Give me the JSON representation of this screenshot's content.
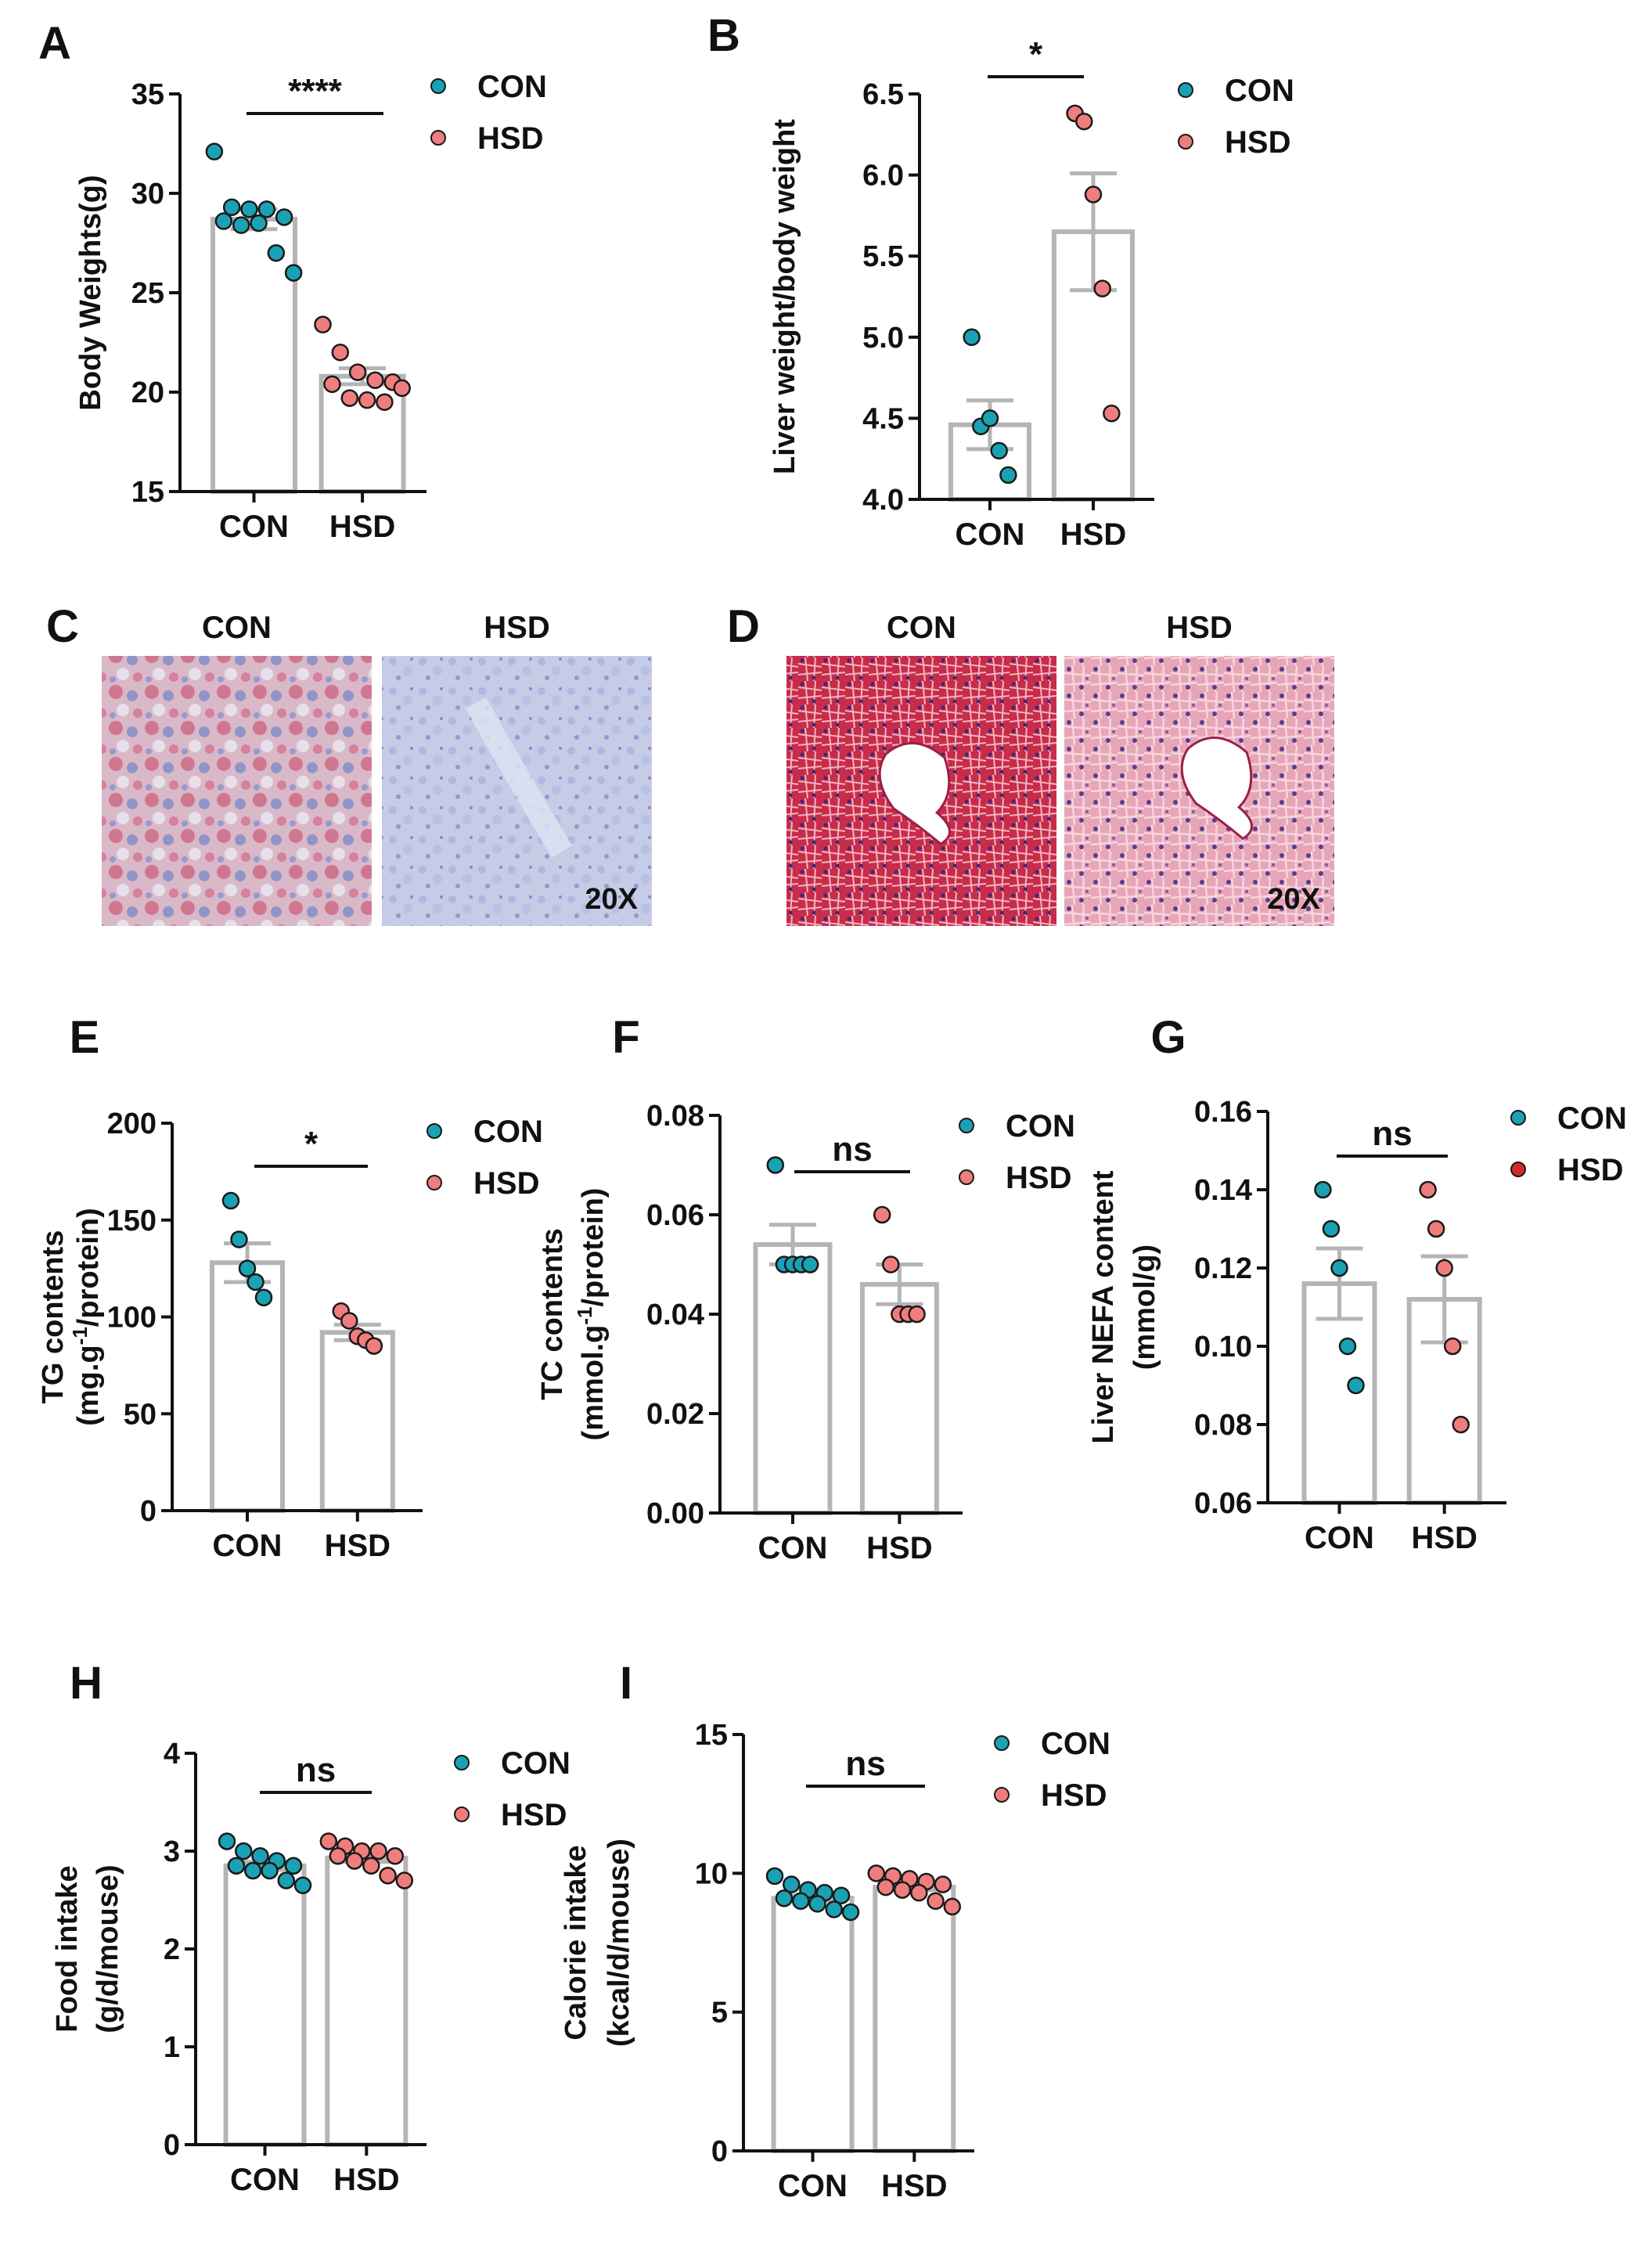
{
  "colors": {
    "con": "#1aa1b3",
    "hsd": "#f07d7d",
    "hsd_dark": "#d42a2a",
    "bar": "#b5b5b5",
    "axis": "#111111"
  },
  "charts": [
    {
      "letter": "A",
      "type": "bar-scatter",
      "ylabel": [
        "Body Weights(g)"
      ],
      "categories": [
        "CON",
        "HSD"
      ],
      "yticks": [
        "15",
        "20",
        "25",
        "30",
        "35"
      ],
      "ylim": [
        15,
        35
      ],
      "significance": "****",
      "legend": [
        "CON",
        "HSD"
      ]
    },
    {
      "letter": "B",
      "type": "bar-scatter",
      "ylabel": [
        "Liver weight/body weight"
      ],
      "categories": [
        "CON",
        "HSD"
      ],
      "yticks": [
        "4.0",
        "4.5",
        "5.0",
        "5.5",
        "6.0",
        "6.5"
      ],
      "ylim": [
        4.0,
        6.5
      ],
      "significance": "*",
      "legend": [
        "CON",
        "HSD"
      ]
    },
    {
      "letter": "E",
      "type": "bar-scatter",
      "ylabel": [
        "TG contents",
        "(mg.g-1/protein)"
      ],
      "categories": [
        "CON",
        "HSD"
      ],
      "yticks": [
        "0",
        "50",
        "100",
        "150",
        "200"
      ],
      "ylim": [
        0,
        200
      ],
      "significance": "*",
      "legend": [
        "CON",
        "HSD"
      ]
    },
    {
      "letter": "F",
      "type": "bar-scatter",
      "ylabel": [
        "TC contents",
        "(mmol.g-1/protein)"
      ],
      "categories": [
        "CON",
        "HSD"
      ],
      "yticks": [
        "0.00",
        "0.02",
        "0.04",
        "0.06",
        "0.08"
      ],
      "ylim": [
        0,
        0.08
      ],
      "significance": "ns",
      "legend": [
        "CON",
        "HSD"
      ]
    },
    {
      "letter": "G",
      "type": "bar-scatter",
      "ylabel": [
        "Liver NEFA content",
        "(mmol/g)"
      ],
      "categories": [
        "CON",
        "HSD"
      ],
      "yticks": [
        "0.06",
        "0.08",
        "0.10",
        "0.12",
        "0.14",
        "0.16"
      ],
      "ylim": [
        0.06,
        0.16
      ],
      "significance": "ns",
      "legend": [
        "CON",
        "HSD"
      ]
    },
    {
      "letter": "H",
      "type": "bar-scatter",
      "ylabel": [
        "Food intake",
        "(g/d/mouse)"
      ],
      "categories": [
        "CON",
        "HSD"
      ],
      "yticks": [
        "0",
        "1",
        "2",
        "3",
        "4"
      ],
      "ylim": [
        0,
        4
      ],
      "significance": "ns",
      "legend": [
        "CON",
        "HSD"
      ]
    },
    {
      "letter": "I",
      "type": "bar-scatter",
      "ylabel": [
        "Calorie intake",
        "(kcal/d/mouse)"
      ],
      "categories": [
        "CON",
        "HSD"
      ],
      "yticks": [
        "0",
        "5",
        "10",
        "15"
      ],
      "ylim": [
        0,
        15
      ],
      "significance": "ns",
      "legend": [
        "CON",
        "HSD"
      ]
    }
  ],
  "chart_data": [
    {
      "panel": "A",
      "type": "bar",
      "categories": [
        "CON",
        "HSD"
      ],
      "ylabel": "Body Weights(g)",
      "ylim": [
        15,
        35
      ],
      "series": [
        {
          "name": "CON",
          "mean": 28.7,
          "sem": 0.5,
          "points": [
            32.1,
            29.3,
            29.2,
            29.2,
            28.8,
            28.6,
            28.4,
            28.5,
            27.0,
            26.0
          ]
        },
        {
          "name": "HSD",
          "mean": 20.8,
          "sem": 0.4,
          "points": [
            23.4,
            22.0,
            21.0,
            20.6,
            20.5,
            20.4,
            19.7,
            19.6,
            19.5,
            20.2
          ]
        }
      ],
      "significance": "****",
      "legend": [
        "CON",
        "HSD"
      ]
    },
    {
      "panel": "B",
      "type": "bar",
      "categories": [
        "CON",
        "HSD"
      ],
      "ylabel": "Liver weight/body weight",
      "ylim": [
        4.0,
        6.5
      ],
      "series": [
        {
          "name": "CON",
          "mean": 4.46,
          "sem": 0.15,
          "points": [
            5.0,
            4.45,
            4.5,
            4.3,
            4.15
          ]
        },
        {
          "name": "HSD",
          "mean": 5.65,
          "sem": 0.36,
          "points": [
            6.38,
            6.33,
            5.88,
            5.3,
            4.53
          ]
        }
      ],
      "significance": "*",
      "legend": [
        "CON",
        "HSD"
      ]
    },
    {
      "panel": "E",
      "type": "bar",
      "categories": [
        "CON",
        "HSD"
      ],
      "ylabel": "TG contents (mg.g-1/protein)",
      "ylim": [
        0,
        200
      ],
      "series": [
        {
          "name": "CON",
          "mean": 128,
          "sem": 10,
          "points": [
            160,
            140,
            125,
            118,
            110
          ]
        },
        {
          "name": "HSD",
          "mean": 92,
          "sem": 4,
          "points": [
            103,
            98,
            90,
            88,
            85
          ]
        }
      ],
      "significance": "*",
      "legend": [
        "CON",
        "HSD"
      ]
    },
    {
      "panel": "F",
      "type": "bar",
      "categories": [
        "CON",
        "HSD"
      ],
      "ylabel": "TC contents (mmol.g-1/protein)",
      "ylim": [
        0,
        0.08
      ],
      "series": [
        {
          "name": "CON",
          "mean": 0.054,
          "sem": 0.004,
          "points": [
            0.07,
            0.05,
            0.05,
            0.05,
            0.05
          ]
        },
        {
          "name": "HSD",
          "mean": 0.046,
          "sem": 0.004,
          "points": [
            0.06,
            0.05,
            0.04,
            0.04,
            0.04
          ]
        }
      ],
      "significance": "ns",
      "legend": [
        "CON",
        "HSD"
      ]
    },
    {
      "panel": "G",
      "type": "bar",
      "categories": [
        "CON",
        "HSD"
      ],
      "ylabel": "Liver NEFA content (mmol/g)",
      "ylim": [
        0.06,
        0.16
      ],
      "series": [
        {
          "name": "CON",
          "mean": 0.116,
          "sem": 0.009,
          "points": [
            0.14,
            0.13,
            0.12,
            0.1,
            0.09
          ]
        },
        {
          "name": "HSD",
          "mean": 0.112,
          "sem": 0.011,
          "points": [
            0.14,
            0.13,
            0.12,
            0.1,
            0.08
          ]
        }
      ],
      "significance": "ns",
      "legend": [
        "CON",
        "HSD"
      ]
    },
    {
      "panel": "H",
      "type": "bar",
      "categories": [
        "CON",
        "HSD"
      ],
      "ylabel": "Food intake (g/d/mouse)",
      "ylim": [
        0,
        4
      ],
      "series": [
        {
          "name": "CON",
          "mean": 2.85,
          "sem": 0.04,
          "points": [
            3.1,
            3.0,
            2.95,
            2.9,
            2.85,
            2.85,
            2.8,
            2.8,
            2.7,
            2.65
          ]
        },
        {
          "name": "HSD",
          "mean": 2.93,
          "sem": 0.04,
          "points": [
            3.1,
            3.05,
            3.0,
            3.0,
            2.95,
            2.95,
            2.9,
            2.85,
            2.75,
            2.7
          ]
        }
      ],
      "significance": "ns",
      "legend": [
        "CON",
        "HSD"
      ]
    },
    {
      "panel": "I",
      "type": "bar",
      "categories": [
        "CON",
        "HSD"
      ],
      "ylabel": "Calorie intake (kcal/d/mouse)",
      "ylim": [
        0,
        15
      ],
      "series": [
        {
          "name": "CON",
          "mean": 9.1,
          "sem": 0.1,
          "points": [
            9.9,
            9.6,
            9.4,
            9.3,
            9.2,
            9.1,
            9.0,
            8.9,
            8.7,
            8.6
          ]
        },
        {
          "name": "HSD",
          "mean": 9.5,
          "sem": 0.1,
          "points": [
            10.0,
            9.9,
            9.8,
            9.7,
            9.6,
            9.5,
            9.4,
            9.3,
            9.0,
            8.8
          ]
        }
      ],
      "significance": "ns",
      "legend": [
        "CON",
        "HSD"
      ]
    }
  ],
  "micrographs": [
    {
      "letter": "C",
      "titles": [
        "CON",
        "HSD"
      ],
      "magnification": "20X",
      "stain": "oil-red-o"
    },
    {
      "letter": "D",
      "titles": [
        "CON",
        "HSD"
      ],
      "magnification": "20X",
      "stain": "he"
    }
  ]
}
